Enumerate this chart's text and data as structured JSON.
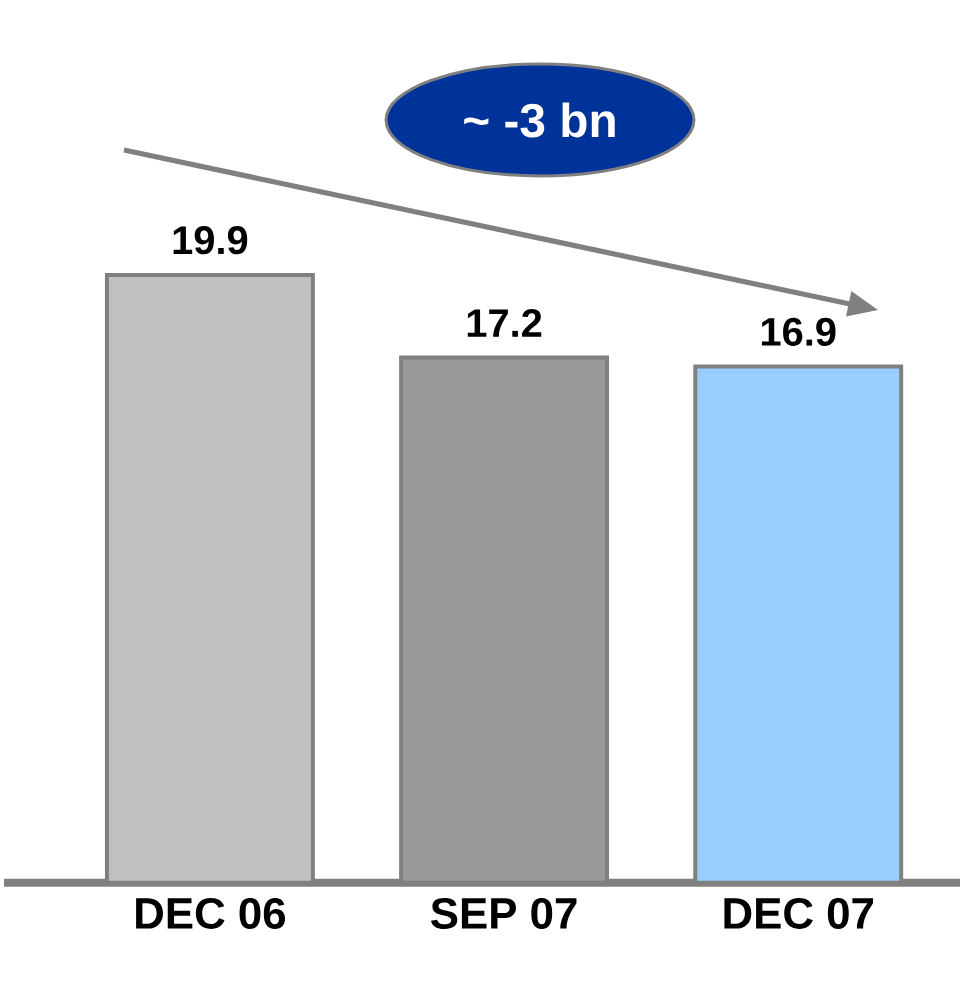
{
  "chart_data": {
    "type": "bar",
    "categories": [
      "DEC 06",
      "SEP 07",
      "DEC 07"
    ],
    "values": [
      19.9,
      17.2,
      16.9
    ],
    "colors": [
      "#c0c0c0",
      "#999999",
      "#99ccff"
    ],
    "data_labels": true,
    "annotations": [
      "~ -3 bn"
    ]
  }
}
